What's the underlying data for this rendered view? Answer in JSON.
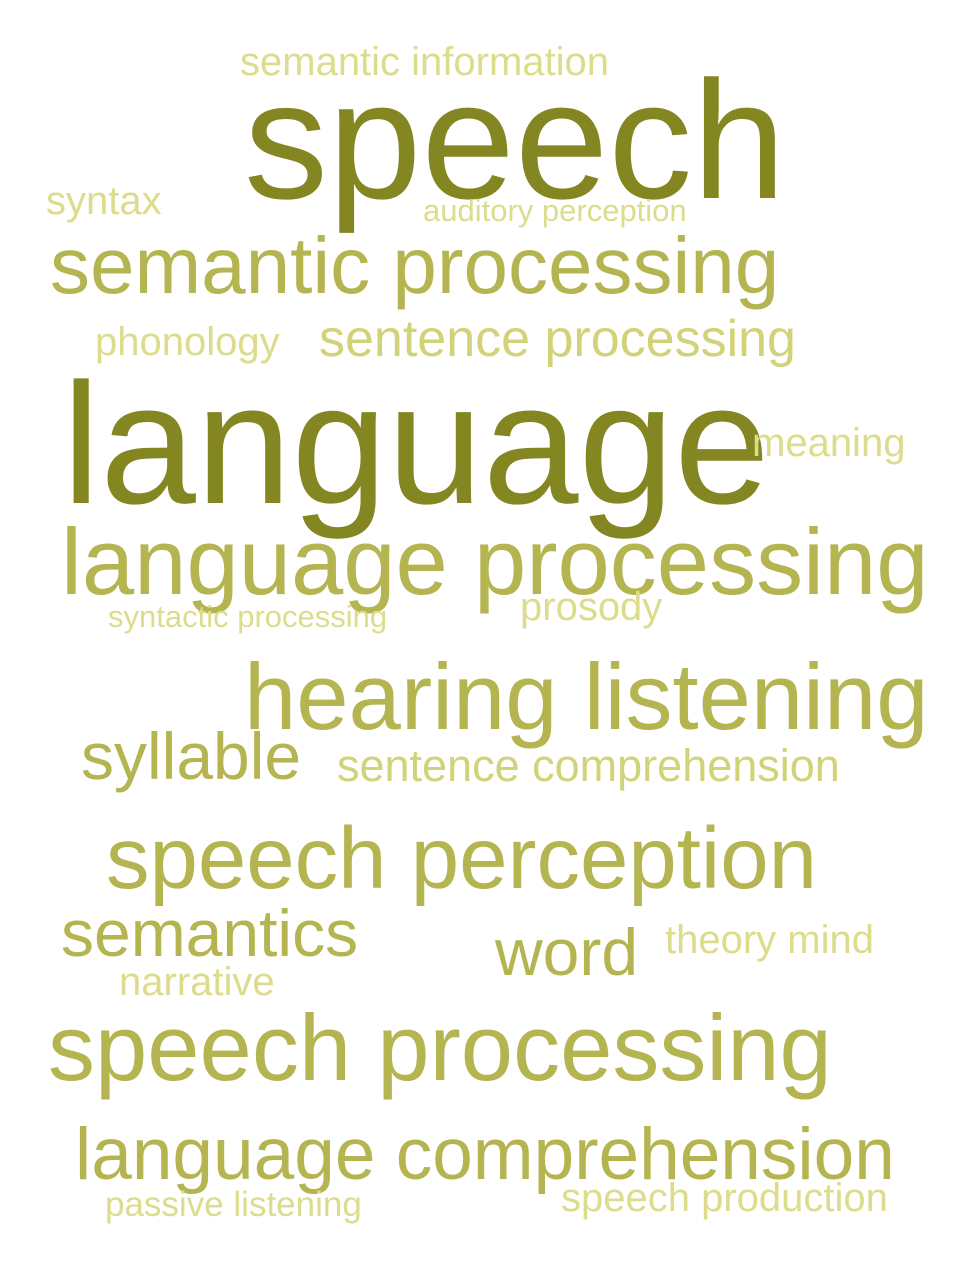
{
  "colors": {
    "background": "#ffffff",
    "dark": "#848622",
    "medium": "#b4b450",
    "light": "#d2d278",
    "lightest": "#dcdc8c"
  },
  "words": [
    {
      "id": "speech",
      "text": "speech",
      "color": "#848622"
    },
    {
      "id": "language",
      "text": "language",
      "color": "#848622"
    },
    {
      "id": "semantic-information",
      "text": "semantic information",
      "color": "#dcdc8c"
    },
    {
      "id": "syntax",
      "text": "syntax",
      "color": "#dcdc8c"
    },
    {
      "id": "auditory-perception",
      "text": "auditory perception",
      "color": "#dcdc8c"
    },
    {
      "id": "semantic-processing",
      "text": "semantic processing",
      "color": "#b4b450"
    },
    {
      "id": "phonology",
      "text": "phonology",
      "color": "#dcdc8c"
    },
    {
      "id": "sentence-processing",
      "text": "sentence processing",
      "color": "#d2d278"
    },
    {
      "id": "meaning",
      "text": "meaning",
      "color": "#dcdc8c"
    },
    {
      "id": "language-processing",
      "text": "language processing",
      "color": "#b4b450"
    },
    {
      "id": "syntactic-processing",
      "text": "syntactic processing",
      "color": "#dcdc8c"
    },
    {
      "id": "prosody",
      "text": "prosody",
      "color": "#dcdc8c"
    },
    {
      "id": "hearing-listening",
      "text": "hearing listening",
      "color": "#b4b450"
    },
    {
      "id": "syllable",
      "text": "syllable",
      "color": "#b4b450"
    },
    {
      "id": "sentence-comprehension",
      "text": "sentence comprehension",
      "color": "#d2d278"
    },
    {
      "id": "speech-perception",
      "text": "speech perception",
      "color": "#b4b450"
    },
    {
      "id": "semantics",
      "text": "semantics",
      "color": "#b4b450"
    },
    {
      "id": "word",
      "text": "word",
      "color": "#b4b450"
    },
    {
      "id": "theory-mind",
      "text": "theory mind",
      "color": "#dcdc8c"
    },
    {
      "id": "narrative",
      "text": "narrative",
      "color": "#dcdc8c"
    },
    {
      "id": "speech-processing",
      "text": "speech processing",
      "color": "#b4b450"
    },
    {
      "id": "language-comprehension",
      "text": "language comprehension",
      "color": "#b4b450"
    },
    {
      "id": "passive-listening",
      "text": "passive listening",
      "color": "#dcdc8c"
    },
    {
      "id": "speech-production",
      "text": "speech production",
      "color": "#dcdc8c"
    }
  ]
}
